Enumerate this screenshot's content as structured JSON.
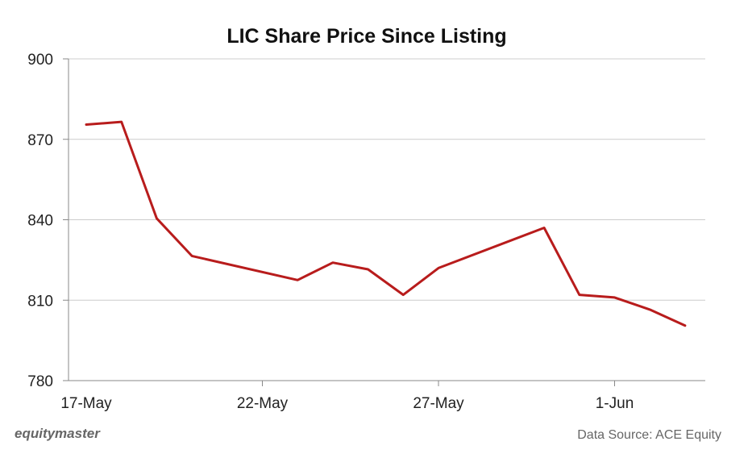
{
  "chart_data": {
    "type": "line",
    "title": "LIC Share Price Since Listing",
    "xlabel": "",
    "ylabel": "",
    "ylim": [
      780,
      900
    ],
    "yticks": [
      "900",
      "870",
      "840",
      "810",
      "780"
    ],
    "xticks": [
      "17-May",
      "22-May",
      "27-May",
      "1-Jun"
    ],
    "grid": "horizontal",
    "series": [
      {
        "color": "#b81c1c",
        "points": [
          {
            "x": "17-May",
            "y": 875.5
          },
          {
            "x": "18-May",
            "y": 876.5
          },
          {
            "x": "19-May",
            "y": 840.5
          },
          {
            "x": "20-May",
            "y": 826.5
          },
          {
            "x": "23-May",
            "y": 817.5
          },
          {
            "x": "24-May",
            "y": 824.0
          },
          {
            "x": "25-May",
            "y": 821.5
          },
          {
            "x": "26-May",
            "y": 812.0
          },
          {
            "x": "27-May",
            "y": 822.0
          },
          {
            "x": "30-May",
            "y": 837.0
          },
          {
            "x": "31-May",
            "y": 812.0
          },
          {
            "x": "1-Jun",
            "y": 811.0
          },
          {
            "x": "2-Jun",
            "y": 806.5
          },
          {
            "x": "3-Jun",
            "y": 800.5
          }
        ]
      }
    ]
  },
  "footer": {
    "brand": "equitymaster",
    "source": "Data Source: ACE Equity"
  },
  "colors": {
    "line": "#b81c1c",
    "grid": "#cccccc",
    "axis": "#888888"
  }
}
